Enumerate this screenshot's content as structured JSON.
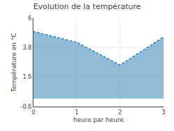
{
  "chart_data": {
    "type": "area",
    "title": "Evolution de la température",
    "xlabel": "heure par heure",
    "ylabel": "Température en °C",
    "x": [
      0,
      1,
      2,
      3
    ],
    "values": [
      5.0,
      4.2,
      2.5,
      4.6
    ],
    "xlim": [
      0,
      3
    ],
    "ylim": [
      -0.6,
      6.0
    ],
    "xticks": [
      0,
      1,
      2,
      3
    ],
    "yticks": [
      -0.6,
      1.6,
      3.8,
      6.0
    ],
    "line_style": "dotted",
    "grid": true
  }
}
